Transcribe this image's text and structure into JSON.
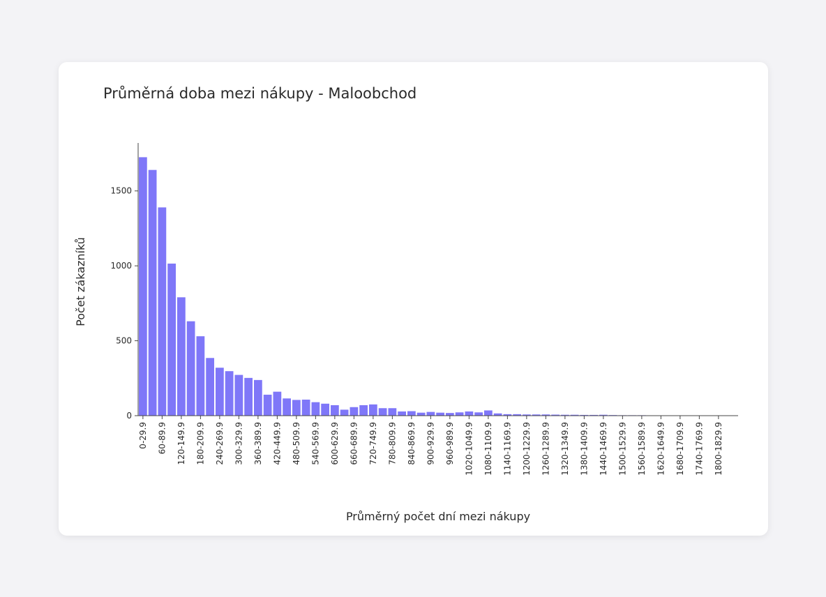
{
  "colors": {
    "bar": "#7f77f8",
    "axis": "#444444"
  },
  "chart_data": {
    "type": "bar",
    "title": "Průměrná doba mezi nákupy - Maloobchod",
    "xlabel": "Průměrný počet dní mezi nákupy",
    "ylabel": "Počet zákazníků",
    "ylim": [
      0,
      1820
    ],
    "yticks": [
      0,
      500,
      1000,
      1500
    ],
    "categories": [
      "0-29.9",
      "30-59.9",
      "60-89.9",
      "90-119.9",
      "120-149.9",
      "150-179.9",
      "180-209.9",
      "210-239.9",
      "240-269.9",
      "270-299.9",
      "300-329.9",
      "330-359.9",
      "360-389.9",
      "390-419.9",
      "420-449.9",
      "450-479.9",
      "480-509.9",
      "510-539.9",
      "540-569.9",
      "570-599.9",
      "600-629.9",
      "630-659.9",
      "660-689.9",
      "690-719.9",
      "720-749.9",
      "750-779.9",
      "780-809.9",
      "810-839.9",
      "840-869.9",
      "870-899.9",
      "900-929.9",
      "930-959.9",
      "960-989.9",
      "990-1019.9",
      "1020-1049.9",
      "1050-1079.9",
      "1080-1109.9",
      "1110-1139.9",
      "1140-1169.9",
      "1170-1199.9",
      "1200-1229.9",
      "1230-1259.9",
      "1260-1289.9",
      "1290-1319.9",
      "1320-1349.9",
      "1350-1379.9",
      "1380-1409.9",
      "1410-1439.9",
      "1440-1469.9",
      "1470-1499.9",
      "1500-1529.9",
      "1530-1559.9",
      "1560-1589.9",
      "1590-1619.9",
      "1620-1649.9",
      "1650-1679.9",
      "1680-1709.9",
      "1710-1739.9",
      "1740-1769.9",
      "1770-1799.9",
      "1800-1829.9"
    ],
    "tick_labels": [
      "0-29.9",
      "60-89.9",
      "120-149.9",
      "180-209.9",
      "240-269.9",
      "300-329.9",
      "360-389.9",
      "420-449.9",
      "480-509.9",
      "540-569.9",
      "600-629.9",
      "660-689.9",
      "720-749.9",
      "780-809.9",
      "840-869.9",
      "900-929.9",
      "960-989.9",
      "1020-1049.9",
      "1080-1109.9",
      "1140-1169.9",
      "1200-1229.9",
      "1260-1289.9",
      "1320-1349.9",
      "1380-1409.9",
      "1440-1469.9",
      "1500-1529.9",
      "1560-1589.9",
      "1620-1649.9",
      "1680-1709.9",
      "1740-1769.9",
      "1800-1829.9"
    ],
    "values": [
      1725,
      1640,
      1390,
      1015,
      790,
      630,
      530,
      385,
      320,
      297,
      272,
      252,
      238,
      140,
      160,
      115,
      105,
      107,
      90,
      80,
      70,
      40,
      57,
      70,
      75,
      50,
      50,
      28,
      30,
      20,
      25,
      20,
      18,
      22,
      28,
      22,
      35,
      15,
      10,
      10,
      8,
      8,
      8,
      7,
      6,
      6,
      5,
      5,
      6,
      4,
      3,
      3,
      3,
      2,
      2,
      2,
      1,
      1,
      1,
      1,
      1
    ]
  }
}
